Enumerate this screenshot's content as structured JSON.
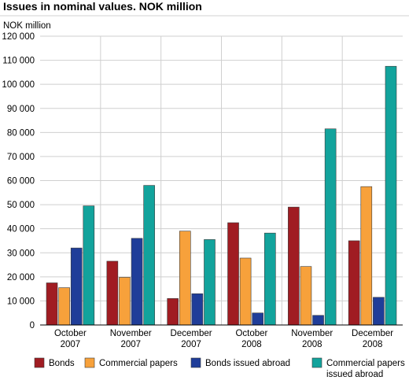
{
  "chart_data": {
    "type": "bar",
    "title": "Issues in nominal values. NOK million",
    "ylabel": "NOK million",
    "xlabel": "",
    "ylim": [
      0,
      120000
    ],
    "y_ticks": [
      "0",
      "10 000",
      "20 000",
      "30 000",
      "40 000",
      "50 000",
      "60 000",
      "70 000",
      "80 000",
      "90 000",
      "100 000",
      "110 000",
      "120 000"
    ],
    "y_tick_values": [
      0,
      10000,
      20000,
      30000,
      40000,
      50000,
      60000,
      70000,
      80000,
      90000,
      100000,
      110000,
      120000
    ],
    "categories": [
      {
        "line1": "October",
        "line2": "2007"
      },
      {
        "line1": "November",
        "line2": "2007"
      },
      {
        "line1": "December",
        "line2": "2007"
      },
      {
        "line1": "October",
        "line2": "2008"
      },
      {
        "line1": "November",
        "line2": "2008"
      },
      {
        "line1": "December",
        "line2": "2008"
      }
    ],
    "series": [
      {
        "name": "Bonds",
        "name_line2": "",
        "color": "#a01c22",
        "values": [
          17500,
          26500,
          11000,
          42500,
          49000,
          35000
        ]
      },
      {
        "name": "Commercial papers",
        "name_line2": "",
        "color": "#f7a13b",
        "values": [
          15500,
          19800,
          39000,
          27800,
          24300,
          57500
        ]
      },
      {
        "name": "Bonds issued abroad",
        "name_line2": "",
        "color": "#1f3d99",
        "values": [
          32000,
          36000,
          13000,
          5000,
          4000,
          11500
        ]
      },
      {
        "name": "Commercial papers",
        "name_line2": "issued abroad",
        "color": "#12a39c",
        "values": [
          49500,
          58000,
          35500,
          38200,
          81500,
          107500
        ]
      }
    ],
    "grid": true,
    "legend_position": "bottom"
  }
}
